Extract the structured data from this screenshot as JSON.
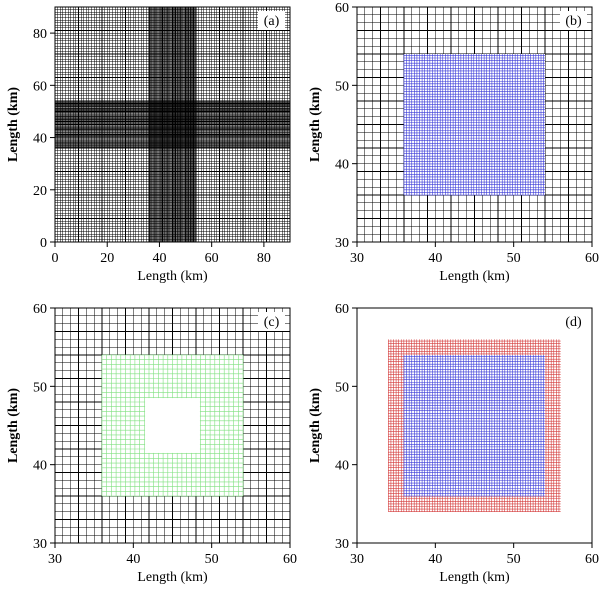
{
  "panels": [
    {
      "label": "(a)",
      "xlabel": "Length (km)",
      "ylabel": "Length (km)",
      "xlim": [
        0,
        90
      ],
      "ylim": [
        0,
        90
      ],
      "xticks": [
        "0",
        "20",
        "40",
        "60",
        "80"
      ],
      "yticks": [
        "0",
        "20",
        "40",
        "60",
        "80"
      ],
      "grid": {
        "base_spacing_km": 1,
        "dense_band_km": [
          36,
          54
        ],
        "dense_spacing_km": 0.33,
        "color": "#000000"
      },
      "refinement_regions": []
    },
    {
      "label": "(b)",
      "xlabel": "Length (km)",
      "ylabel": "Length (km)",
      "xlim": [
        30,
        60
      ],
      "ylim": [
        30,
        60
      ],
      "xticks": [
        "30",
        "40",
        "50",
        "60"
      ],
      "yticks": [
        "30",
        "40",
        "50",
        "60"
      ],
      "grid": {
        "base_spacing_km": 1,
        "color": "#000000"
      },
      "refinement_regions": [
        {
          "x": [
            36,
            54
          ],
          "y": [
            36,
            54
          ],
          "spacing_km": 0.33,
          "color": "#3a3ad8",
          "hole": null
        }
      ]
    },
    {
      "label": "(c)",
      "xlabel": "Length (km)",
      "ylabel": "Length (km)",
      "xlim": [
        30,
        60
      ],
      "ylim": [
        30,
        60
      ],
      "xticks": [
        "30",
        "40",
        "50",
        "60"
      ],
      "yticks": [
        "30",
        "40",
        "50",
        "60"
      ],
      "grid": {
        "base_spacing_km": 1,
        "color": "#000000"
      },
      "refinement_regions": [
        {
          "x": [
            36,
            54
          ],
          "y": [
            36,
            54
          ],
          "spacing_km": 0.6,
          "color": "#7fe07f",
          "hole": {
            "x": [
              41.5,
              48.5
            ],
            "y": [
              41.5,
              48.5
            ]
          }
        }
      ]
    },
    {
      "label": "(d)",
      "xlabel": "Length (km)",
      "ylabel": "Length (km)",
      "xlim": [
        30,
        60
      ],
      "ylim": [
        30,
        60
      ],
      "xticks": [
        "30",
        "40",
        "50",
        "60"
      ],
      "yticks": [
        "30",
        "40",
        "50",
        "60"
      ],
      "grid": null,
      "refinement_regions": [
        {
          "x": [
            34,
            56
          ],
          "y": [
            34,
            56
          ],
          "spacing_km": 0.33,
          "color": "#d43a3a",
          "hole": null
        },
        {
          "x": [
            36,
            54
          ],
          "y": [
            36,
            54
          ],
          "spacing_km": 0.33,
          "color": "#3a3ad8",
          "hole": null
        }
      ]
    }
  ]
}
